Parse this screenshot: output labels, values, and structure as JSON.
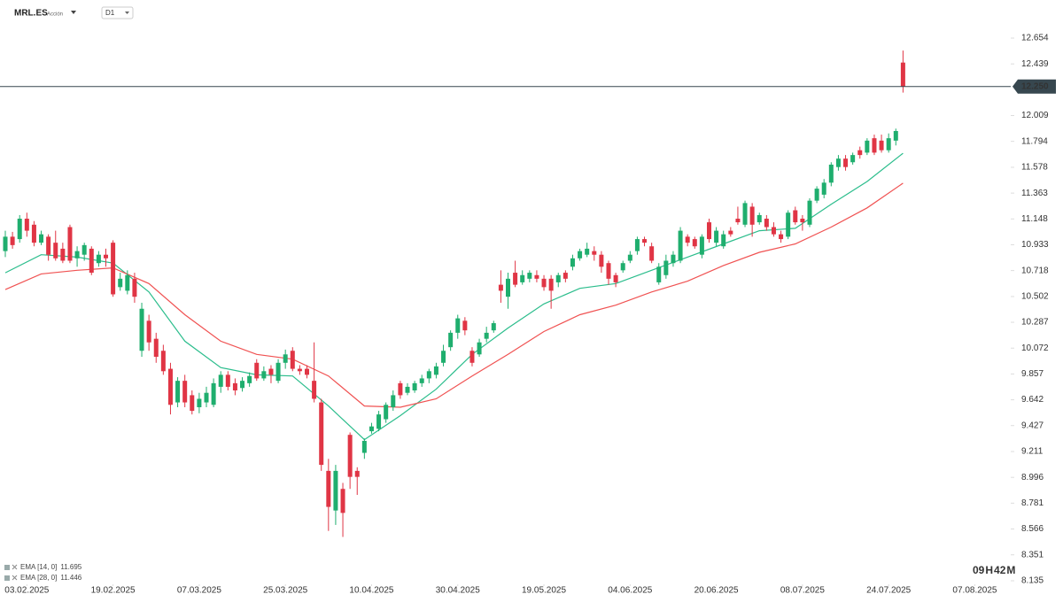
{
  "header": {
    "symbol": "MRL.ES",
    "asset_type": "Acción",
    "timeframe": "D1"
  },
  "chart_data": {
    "type": "candlestick",
    "up_color": "#1fae6e",
    "down_color": "#e03545",
    "x": [
      0,
      1,
      2,
      3,
      4,
      5,
      6,
      7,
      8,
      9,
      10,
      11,
      12,
      13,
      14,
      15,
      16,
      17,
      18,
      19,
      20,
      21,
      22,
      23,
      24,
      25,
      26,
      27,
      28,
      29,
      30,
      31,
      32,
      33,
      34,
      35,
      36,
      37,
      38,
      39,
      40,
      41,
      42,
      43,
      44,
      45,
      46,
      47,
      48,
      49,
      50,
      51,
      52,
      53,
      54,
      55,
      56,
      57,
      58,
      59,
      60,
      61,
      62,
      63,
      64,
      65,
      66,
      67,
      68,
      69,
      70,
      71,
      72,
      73,
      74,
      75,
      76,
      77,
      78,
      79,
      80,
      81,
      82,
      83,
      84,
      85,
      86,
      87,
      88,
      89,
      90,
      91,
      92,
      93,
      94,
      95,
      96,
      97,
      98,
      99,
      100,
      101,
      102,
      103,
      104,
      105,
      106,
      107,
      108,
      109,
      110,
      111,
      112,
      113,
      114,
      115,
      116,
      117,
      118,
      119,
      120,
      121,
      122,
      123,
      124,
      125
    ],
    "open": [
      10.88,
      11.0,
      10.98,
      11.15,
      11.1,
      10.95,
      11.0,
      10.95,
      10.9,
      11.08,
      10.82,
      10.85,
      10.9,
      10.78,
      10.85,
      10.95,
      10.58,
      10.55,
      10.65,
      10.05,
      10.3,
      10.15,
      10.05,
      9.9,
      9.62,
      9.8,
      9.68,
      9.58,
      9.62,
      9.6,
      9.75,
      9.85,
      9.78,
      9.74,
      9.78,
      9.95,
      9.82,
      9.9,
      9.8,
      9.95,
      10.05,
      9.9,
      9.9,
      9.8,
      9.62,
      9.05,
      8.72,
      8.9,
      9.35,
      9.05,
      9.2,
      9.38,
      9.4,
      9.48,
      9.58,
      9.78,
      9.7,
      9.72,
      9.78,
      9.82,
      9.85,
      9.95,
      10.08,
      10.2,
      10.3,
      10.05,
      10.02,
      10.15,
      10.22,
      10.6,
      10.5,
      10.7,
      10.62,
      10.65,
      10.68,
      10.65,
      10.65,
      10.62,
      10.7,
      10.75,
      10.82,
      10.85,
      10.88,
      10.85,
      10.78,
      10.68,
      10.72,
      10.8,
      10.88,
      10.98,
      10.92,
      10.62,
      10.68,
      10.78,
      10.8,
      11.0,
      10.98,
      10.85,
      11.12,
      10.95,
      10.92,
      11.05,
      11.15,
      11.1,
      11.25,
      11.12,
      11.15,
      11.08,
      11.02,
      11.0,
      11.22,
      11.15,
      11.1,
      11.3,
      11.35,
      11.45,
      11.58,
      11.65,
      11.62,
      11.72,
      11.7,
      11.82,
      11.8,
      11.72,
      11.8,
      12.45
    ],
    "high": [
      11.05,
      11.04,
      11.18,
      11.2,
      11.13,
      11.05,
      11.02,
      11.05,
      10.95,
      11.1,
      10.92,
      10.95,
      10.92,
      10.88,
      10.9,
      10.97,
      10.7,
      10.72,
      10.7,
      10.45,
      10.35,
      10.2,
      10.1,
      9.95,
      9.83,
      9.85,
      9.72,
      9.7,
      9.75,
      9.82,
      9.88,
      9.88,
      9.82,
      9.83,
      9.87,
      9.98,
      9.92,
      9.93,
      9.98,
      10.06,
      10.08,
      9.93,
      9.93,
      10.12,
      9.65,
      9.15,
      9.1,
      8.95,
      9.37,
      9.08,
      9.32,
      9.45,
      9.55,
      9.62,
      9.72,
      9.8,
      9.78,
      9.8,
      9.85,
      9.9,
      9.95,
      10.1,
      10.22,
      10.35,
      10.33,
      10.08,
      10.15,
      10.25,
      10.3,
      10.72,
      10.7,
      10.8,
      10.72,
      10.72,
      10.72,
      10.68,
      10.68,
      10.7,
      10.72,
      10.85,
      10.9,
      10.95,
      10.92,
      10.88,
      10.8,
      10.7,
      10.8,
      10.88,
      11.0,
      11.0,
      10.95,
      10.78,
      10.85,
      10.88,
      11.08,
      11.02,
      11.0,
      11.02,
      11.15,
      11.08,
      11.05,
      11.08,
      11.25,
      11.3,
      11.28,
      11.2,
      11.18,
      11.12,
      11.05,
      11.22,
      11.25,
      11.18,
      11.32,
      11.42,
      11.48,
      11.62,
      11.68,
      11.68,
      11.7,
      11.75,
      11.82,
      11.85,
      11.85,
      11.86,
      11.9,
      12.55
    ],
    "low": [
      10.83,
      10.9,
      10.95,
      11.0,
      10.92,
      10.93,
      10.8,
      10.8,
      10.78,
      10.78,
      10.75,
      10.8,
      10.68,
      10.75,
      10.75,
      10.5,
      10.55,
      10.52,
      10.45,
      10.0,
      10.05,
      9.95,
      9.85,
      9.52,
      9.58,
      9.58,
      9.52,
      9.53,
      9.58,
      9.58,
      9.7,
      9.72,
      9.68,
      9.71,
      9.75,
      9.8,
      9.8,
      9.78,
      9.78,
      9.9,
      9.88,
      9.85,
      9.82,
      9.62,
      9.05,
      8.55,
      8.6,
      8.5,
      8.9,
      8.85,
      9.15,
      9.36,
      9.38,
      9.45,
      9.55,
      9.65,
      9.68,
      9.7,
      9.75,
      9.78,
      9.82,
      9.92,
      10.05,
      10.15,
      10.18,
      9.92,
      10.0,
      10.12,
      10.2,
      10.45,
      10.4,
      10.58,
      10.6,
      10.62,
      10.62,
      10.55,
      10.4,
      10.58,
      10.62,
      10.72,
      10.8,
      10.83,
      10.8,
      10.7,
      10.6,
      10.58,
      10.7,
      10.78,
      10.85,
      10.92,
      10.78,
      10.6,
      10.65,
      10.75,
      10.78,
      10.92,
      10.9,
      10.82,
      10.95,
      10.92,
      10.9,
      11.0,
      11.1,
      11.08,
      11.0,
      11.1,
      11.05,
      11.0,
      10.95,
      10.98,
      11.1,
      11.05,
      11.08,
      11.28,
      11.32,
      11.42,
      11.55,
      11.55,
      11.6,
      11.65,
      11.68,
      11.68,
      11.7,
      11.7,
      11.76,
      12.2
    ],
    "close": [
      11.0,
      10.93,
      11.15,
      11.05,
      10.95,
      11.02,
      10.85,
      10.82,
      10.8,
      10.8,
      10.88,
      10.93,
      10.7,
      10.85,
      10.82,
      10.52,
      10.65,
      10.68,
      10.5,
      10.4,
      10.12,
      10.0,
      9.88,
      9.6,
      9.8,
      9.62,
      9.55,
      9.65,
      9.7,
      9.78,
      9.85,
      9.75,
      9.72,
      9.8,
      9.84,
      9.82,
      9.88,
      9.85,
      9.95,
      10.02,
      9.9,
      9.88,
      9.85,
      9.65,
      9.1,
      8.75,
      9.05,
      8.7,
      9.0,
      9.0,
      9.3,
      9.42,
      9.52,
      9.6,
      9.68,
      9.68,
      9.75,
      9.78,
      9.82,
      9.88,
      9.92,
      10.05,
      10.2,
      10.32,
      10.22,
      9.95,
      10.12,
      10.2,
      10.28,
      10.55,
      10.65,
      10.6,
      10.68,
      10.7,
      10.65,
      10.58,
      10.55,
      10.68,
      10.65,
      10.82,
      10.88,
      10.9,
      10.85,
      10.75,
      10.65,
      10.62,
      10.78,
      10.85,
      10.98,
      10.95,
      10.8,
      10.75,
      10.8,
      10.85,
      11.05,
      10.95,
      10.92,
      11.0,
      10.98,
      11.05,
      11.02,
      11.02,
      11.12,
      11.28,
      11.1,
      11.18,
      11.08,
      11.02,
      10.98,
      11.2,
      11.12,
      11.12,
      11.3,
      11.4,
      11.45,
      11.6,
      11.65,
      11.58,
      11.68,
      11.68,
      11.8,
      11.7,
      11.72,
      11.82,
      11.88,
      12.25
    ],
    "series": [
      {
        "name": "EMA [14, 0]",
        "last_value": 11.695,
        "color": "#2bbd8c",
        "x": [
          0,
          5,
          10,
          15,
          20,
          25,
          30,
          35,
          40,
          45,
          50,
          55,
          60,
          65,
          70,
          75,
          80,
          85,
          90,
          95,
          100,
          105,
          110,
          115,
          120,
          125
        ],
        "values": [
          10.7,
          10.85,
          10.83,
          10.78,
          10.54,
          10.13,
          9.91,
          9.85,
          9.84,
          9.59,
          9.31,
          9.51,
          9.73,
          10.02,
          10.24,
          10.44,
          10.57,
          10.61,
          10.72,
          10.83,
          10.94,
          11.05,
          11.07,
          11.27,
          11.46,
          11.695
        ]
      },
      {
        "name": "EMA [28, 0]",
        "last_value": 11.446,
        "color": "#f05252",
        "x": [
          0,
          5,
          10,
          15,
          20,
          25,
          30,
          35,
          40,
          45,
          50,
          55,
          60,
          65,
          70,
          75,
          80,
          85,
          90,
          95,
          100,
          105,
          110,
          115,
          120,
          125
        ],
        "values": [
          10.56,
          10.69,
          10.72,
          10.74,
          10.61,
          10.35,
          10.13,
          10.02,
          9.98,
          9.84,
          9.59,
          9.58,
          9.65,
          9.84,
          10.02,
          10.21,
          10.35,
          10.43,
          10.54,
          10.63,
          10.76,
          10.87,
          10.94,
          11.08,
          11.24,
          11.446
        ]
      }
    ],
    "last_price": {
      "value": 12.25,
      "label": "12.250"
    },
    "xlim": [
      0,
      140
    ],
    "xticks": [
      {
        "value": 3,
        "label": "03.02.2025"
      },
      {
        "value": 15,
        "label": "19.02.2025"
      },
      {
        "value": 27,
        "label": "07.03.2025"
      },
      {
        "value": 39,
        "label": "25.03.2025"
      },
      {
        "value": 51,
        "label": "10.04.2025"
      },
      {
        "value": 63,
        "label": "30.04.2025"
      },
      {
        "value": 75,
        "label": "19.05.2025"
      },
      {
        "value": 87,
        "label": "04.06.2025"
      },
      {
        "value": 99,
        "label": "20.06.2025"
      },
      {
        "value": 111,
        "label": "08.07.2025"
      },
      {
        "value": 123,
        "label": "24.07.2025"
      },
      {
        "value": 135,
        "label": "07.08.2025"
      }
    ],
    "ylim": [
      8.135,
      12.654
    ],
    "yticks": [
      12.654,
      12.439,
      12.009,
      11.794,
      11.578,
      11.363,
      11.148,
      10.933,
      10.718,
      10.502,
      10.287,
      10.072,
      9.857,
      9.642,
      9.427,
      9.211,
      8.996,
      8.781,
      8.566,
      8.351,
      8.135
    ],
    "countdown": [
      "09",
      "H",
      "42",
      "M"
    ]
  }
}
